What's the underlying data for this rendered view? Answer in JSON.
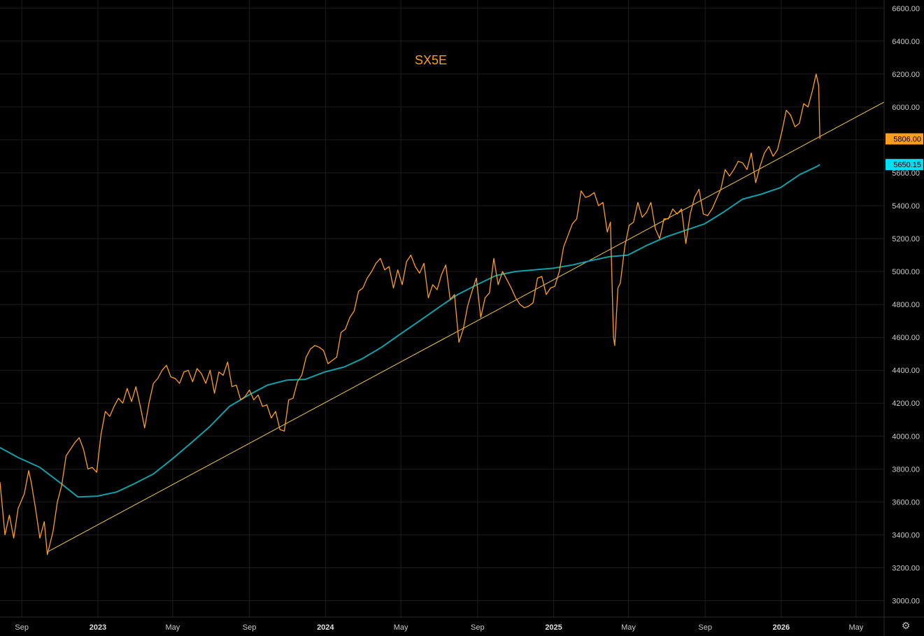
{
  "colors": {
    "background": "#000000",
    "price": "#ff9e1b",
    "moving_average": "#12a0a8",
    "trendline": "#f2c94c",
    "grid": "#1c1c1c",
    "last_price_label_bg": "#ff9e1b",
    "ma_label_bg": "#00e0f0"
  },
  "settings_icon": "gear-icon",
  "chart_data": {
    "type": "line",
    "title": "SX5E",
    "xlabel": "",
    "ylabel": "",
    "ylim": [
      2900,
      6650
    ],
    "xlim": [
      "2022-07-28",
      "2026-06-15"
    ],
    "grid": true,
    "y_ticks": [
      "6600.00",
      "6400.00",
      "6200.00",
      "6000.00",
      "5800.00",
      "5600.00",
      "5400.00",
      "5200.00",
      "5000.00",
      "4800.00",
      "4600.00",
      "4400.00",
      "4200.00",
      "4000.00",
      "3800.00",
      "3600.00",
      "3400.00",
      "3200.00",
      "3000.00"
    ],
    "x_ticks": [
      {
        "label": "Sep",
        "date": "2022-09-01",
        "bold": false
      },
      {
        "label": "2023",
        "date": "2023-01-01",
        "bold": true
      },
      {
        "label": "May",
        "date": "2023-05-01",
        "bold": false
      },
      {
        "label": "Sep",
        "date": "2023-09-01",
        "bold": false
      },
      {
        "label": "2024",
        "date": "2024-01-01",
        "bold": true
      },
      {
        "label": "May",
        "date": "2024-05-01",
        "bold": false
      },
      {
        "label": "Sep",
        "date": "2024-09-01",
        "bold": false
      },
      {
        "label": "2025",
        "date": "2025-01-01",
        "bold": true
      },
      {
        "label": "May",
        "date": "2025-05-01",
        "bold": false
      },
      {
        "label": "Sep",
        "date": "2025-09-01",
        "bold": false
      },
      {
        "label": "2026",
        "date": "2026-01-01",
        "bold": true
      },
      {
        "label": "May",
        "date": "2026-05-01",
        "bold": false
      }
    ],
    "series": [
      {
        "kind": "price",
        "points": [
          [
            "2022-07-28",
            3720
          ],
          [
            "2022-08-05",
            3400
          ],
          [
            "2022-08-12",
            3520
          ],
          [
            "2022-08-19",
            3380
          ],
          [
            "2022-08-26",
            3560
          ],
          [
            "2022-09-05",
            3650
          ],
          [
            "2022-09-12",
            3790
          ],
          [
            "2022-09-16",
            3720
          ],
          [
            "2022-09-23",
            3560
          ],
          [
            "2022-09-30",
            3380
          ],
          [
            "2022-10-07",
            3480
          ],
          [
            "2022-10-12",
            3280
          ],
          [
            "2022-10-21",
            3420
          ],
          [
            "2022-10-28",
            3600
          ],
          [
            "2022-11-04",
            3700
          ],
          [
            "2022-11-11",
            3880
          ],
          [
            "2022-11-18",
            3920
          ],
          [
            "2022-11-25",
            3960
          ],
          [
            "2022-12-02",
            3990
          ],
          [
            "2022-12-09",
            3920
          ],
          [
            "2022-12-16",
            3800
          ],
          [
            "2022-12-23",
            3810
          ],
          [
            "2022-12-30",
            3780
          ],
          [
            "2023-01-06",
            4010
          ],
          [
            "2023-01-13",
            4150
          ],
          [
            "2023-01-20",
            4120
          ],
          [
            "2023-01-27",
            4180
          ],
          [
            "2023-02-03",
            4230
          ],
          [
            "2023-02-10",
            4200
          ],
          [
            "2023-02-17",
            4290
          ],
          [
            "2023-02-24",
            4210
          ],
          [
            "2023-03-03",
            4300
          ],
          [
            "2023-03-10",
            4180
          ],
          [
            "2023-03-17",
            4050
          ],
          [
            "2023-03-24",
            4200
          ],
          [
            "2023-03-31",
            4320
          ],
          [
            "2023-04-07",
            4350
          ],
          [
            "2023-04-14",
            4400
          ],
          [
            "2023-04-21",
            4430
          ],
          [
            "2023-04-28",
            4360
          ],
          [
            "2023-05-05",
            4350
          ],
          [
            "2023-05-12",
            4320
          ],
          [
            "2023-05-19",
            4390
          ],
          [
            "2023-05-26",
            4400
          ],
          [
            "2023-06-02",
            4330
          ],
          [
            "2023-06-09",
            4410
          ],
          [
            "2023-06-16",
            4380
          ],
          [
            "2023-06-23",
            4320
          ],
          [
            "2023-06-30",
            4400
          ],
          [
            "2023-07-07",
            4260
          ],
          [
            "2023-07-14",
            4390
          ],
          [
            "2023-07-21",
            4370
          ],
          [
            "2023-07-28",
            4450
          ],
          [
            "2023-08-04",
            4300
          ],
          [
            "2023-08-11",
            4310
          ],
          [
            "2023-08-18",
            4220
          ],
          [
            "2023-08-25",
            4240
          ],
          [
            "2023-09-01",
            4280
          ],
          [
            "2023-09-08",
            4220
          ],
          [
            "2023-09-15",
            4250
          ],
          [
            "2023-09-22",
            4180
          ],
          [
            "2023-09-29",
            4190
          ],
          [
            "2023-10-06",
            4110
          ],
          [
            "2023-10-13",
            4150
          ],
          [
            "2023-10-20",
            4040
          ],
          [
            "2023-10-27",
            4030
          ],
          [
            "2023-11-03",
            4220
          ],
          [
            "2023-11-10",
            4230
          ],
          [
            "2023-11-17",
            4330
          ],
          [
            "2023-11-24",
            4370
          ],
          [
            "2023-12-01",
            4480
          ],
          [
            "2023-12-08",
            4530
          ],
          [
            "2023-12-15",
            4550
          ],
          [
            "2023-12-22",
            4540
          ],
          [
            "2023-12-29",
            4520
          ],
          [
            "2024-01-05",
            4440
          ],
          [
            "2024-01-12",
            4460
          ],
          [
            "2024-01-19",
            4480
          ],
          [
            "2024-01-26",
            4630
          ],
          [
            "2024-02-02",
            4650
          ],
          [
            "2024-02-09",
            4720
          ],
          [
            "2024-02-16",
            4760
          ],
          [
            "2024-02-23",
            4880
          ],
          [
            "2024-03-01",
            4900
          ],
          [
            "2024-03-08",
            4960
          ],
          [
            "2024-03-15",
            5000
          ],
          [
            "2024-03-22",
            5050
          ],
          [
            "2024-03-29",
            5080
          ],
          [
            "2024-04-05",
            5010
          ],
          [
            "2024-04-12",
            5030
          ],
          [
            "2024-04-19",
            4900
          ],
          [
            "2024-04-26",
            5010
          ],
          [
            "2024-05-03",
            4920
          ],
          [
            "2024-05-10",
            5060
          ],
          [
            "2024-05-17",
            5100
          ],
          [
            "2024-05-24",
            5030
          ],
          [
            "2024-05-31",
            4990
          ],
          [
            "2024-06-07",
            5050
          ],
          [
            "2024-06-14",
            4840
          ],
          [
            "2024-06-21",
            4920
          ],
          [
            "2024-06-28",
            4890
          ],
          [
            "2024-07-05",
            4980
          ],
          [
            "2024-07-12",
            5040
          ],
          [
            "2024-07-19",
            4830
          ],
          [
            "2024-07-26",
            4860
          ],
          [
            "2024-08-02",
            4570
          ],
          [
            "2024-08-09",
            4650
          ],
          [
            "2024-08-16",
            4790
          ],
          [
            "2024-08-23",
            4880
          ],
          [
            "2024-08-30",
            4960
          ],
          [
            "2024-09-06",
            4720
          ],
          [
            "2024-09-13",
            4840
          ],
          [
            "2024-09-20",
            4870
          ],
          [
            "2024-09-27",
            5080
          ],
          [
            "2024-10-04",
            4920
          ],
          [
            "2024-10-11",
            5000
          ],
          [
            "2024-10-18",
            4950
          ],
          [
            "2024-10-25",
            4900
          ],
          [
            "2024-11-01",
            4840
          ],
          [
            "2024-11-08",
            4800
          ],
          [
            "2024-11-15",
            4780
          ],
          [
            "2024-11-22",
            4790
          ],
          [
            "2024-11-29",
            4810
          ],
          [
            "2024-12-06",
            4960
          ],
          [
            "2024-12-13",
            4970
          ],
          [
            "2024-12-20",
            4860
          ],
          [
            "2024-12-27",
            4900
          ],
          [
            "2025-01-03",
            4910
          ],
          [
            "2025-01-10",
            5000
          ],
          [
            "2025-01-17",
            5150
          ],
          [
            "2025-01-24",
            5220
          ],
          [
            "2025-01-31",
            5290
          ],
          [
            "2025-02-07",
            5320
          ],
          [
            "2025-02-14",
            5490
          ],
          [
            "2025-02-21",
            5450
          ],
          [
            "2025-02-28",
            5460
          ],
          [
            "2025-03-07",
            5480
          ],
          [
            "2025-03-14",
            5400
          ],
          [
            "2025-03-21",
            5420
          ],
          [
            "2025-03-28",
            5240
          ],
          [
            "2025-04-02",
            5300
          ],
          [
            "2025-04-07",
            4600
          ],
          [
            "2025-04-09",
            4550
          ],
          [
            "2025-04-14",
            4900
          ],
          [
            "2025-04-18",
            4930
          ],
          [
            "2025-04-25",
            5150
          ],
          [
            "2025-05-02",
            5280
          ],
          [
            "2025-05-09",
            5300
          ],
          [
            "2025-05-16",
            5420
          ],
          [
            "2025-05-23",
            5330
          ],
          [
            "2025-05-30",
            5360
          ],
          [
            "2025-06-06",
            5420
          ],
          [
            "2025-06-13",
            5260
          ],
          [
            "2025-06-20",
            5200
          ],
          [
            "2025-06-27",
            5320
          ],
          [
            "2025-07-04",
            5320
          ],
          [
            "2025-07-11",
            5380
          ],
          [
            "2025-07-18",
            5350
          ],
          [
            "2025-07-25",
            5380
          ],
          [
            "2025-08-01",
            5170
          ],
          [
            "2025-08-08",
            5350
          ],
          [
            "2025-08-15",
            5450
          ],
          [
            "2025-08-22",
            5500
          ],
          [
            "2025-08-29",
            5350
          ],
          [
            "2025-09-05",
            5340
          ],
          [
            "2025-09-12",
            5380
          ],
          [
            "2025-09-19",
            5440
          ],
          [
            "2025-09-26",
            5500
          ],
          [
            "2025-10-03",
            5620
          ],
          [
            "2025-10-10",
            5580
          ],
          [
            "2025-10-17",
            5620
          ],
          [
            "2025-10-24",
            5670
          ],
          [
            "2025-10-31",
            5660
          ],
          [
            "2025-11-07",
            5620
          ],
          [
            "2025-11-14",
            5720
          ],
          [
            "2025-11-21",
            5540
          ],
          [
            "2025-11-28",
            5640
          ],
          [
            "2025-12-05",
            5720
          ],
          [
            "2025-12-12",
            5760
          ],
          [
            "2025-12-19",
            5700
          ],
          [
            "2025-12-26",
            5740
          ],
          [
            "2026-01-02",
            5850
          ],
          [
            "2026-01-09",
            5980
          ],
          [
            "2026-01-16",
            5950
          ],
          [
            "2026-01-23",
            5880
          ],
          [
            "2026-01-30",
            5900
          ],
          [
            "2026-02-06",
            6020
          ],
          [
            "2026-02-13",
            6000
          ],
          [
            "2026-02-20",
            6100
          ],
          [
            "2026-02-26",
            6200
          ],
          [
            "2026-03-02",
            6130
          ],
          [
            "2026-03-04",
            5806
          ]
        ]
      },
      {
        "kind": "moving_average",
        "points": [
          [
            "2022-07-28",
            3930
          ],
          [
            "2022-08-26",
            3870
          ],
          [
            "2022-09-30",
            3810
          ],
          [
            "2022-10-31",
            3720
          ],
          [
            "2022-11-30",
            3630
          ],
          [
            "2022-12-31",
            3635
          ],
          [
            "2023-01-31",
            3660
          ],
          [
            "2023-02-28",
            3710
          ],
          [
            "2023-03-31",
            3770
          ],
          [
            "2023-04-30",
            3860
          ],
          [
            "2023-05-31",
            3960
          ],
          [
            "2023-06-30",
            4060
          ],
          [
            "2023-07-31",
            4180
          ],
          [
            "2023-08-31",
            4250
          ],
          [
            "2023-09-30",
            4310
          ],
          [
            "2023-10-31",
            4340
          ],
          [
            "2023-11-30",
            4345
          ],
          [
            "2023-12-31",
            4390
          ],
          [
            "2024-01-31",
            4420
          ],
          [
            "2024-02-29",
            4470
          ],
          [
            "2024-03-31",
            4540
          ],
          [
            "2024-04-30",
            4620
          ],
          [
            "2024-05-31",
            4700
          ],
          [
            "2024-06-30",
            4780
          ],
          [
            "2024-07-31",
            4860
          ],
          [
            "2024-08-31",
            4920
          ],
          [
            "2024-09-30",
            4975
          ],
          [
            "2024-10-31",
            5000
          ],
          [
            "2024-11-30",
            5010
          ],
          [
            "2024-12-31",
            5020
          ],
          [
            "2025-01-31",
            5040
          ],
          [
            "2025-02-28",
            5065
          ],
          [
            "2025-03-31",
            5090
          ],
          [
            "2025-04-30",
            5100
          ],
          [
            "2025-05-31",
            5160
          ],
          [
            "2025-06-30",
            5210
          ],
          [
            "2025-07-31",
            5250
          ],
          [
            "2025-08-31",
            5290
          ],
          [
            "2025-09-30",
            5360
          ],
          [
            "2025-10-31",
            5440
          ],
          [
            "2025-11-30",
            5470
          ],
          [
            "2025-12-31",
            5510
          ],
          [
            "2026-01-31",
            5590
          ],
          [
            "2026-02-28",
            5640
          ],
          [
            "2026-03-04",
            5650.15
          ]
        ]
      },
      {
        "kind": "trendline",
        "points": [
          [
            "2022-10-14",
            3300
          ],
          [
            "2026-06-15",
            6030
          ]
        ]
      }
    ],
    "price_labels": [
      {
        "value": "5806.00",
        "kind": "last_price"
      },
      {
        "value": "5650.15",
        "kind": "moving_average"
      }
    ]
  }
}
